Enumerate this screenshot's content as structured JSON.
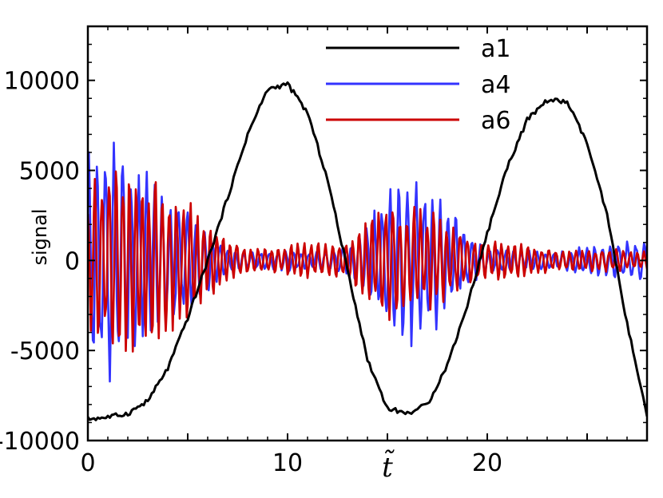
{
  "chart_data": {
    "type": "line",
    "title": "",
    "xlabel": "t̃",
    "ylabel": "signal",
    "xlim": [
      0,
      28
    ],
    "ylim": [
      -10000,
      13000
    ],
    "x_ticks": [
      0,
      10,
      20
    ],
    "x_tick_labels": [
      "0",
      "10",
      "20"
    ],
    "y_ticks": [
      -10000,
      -5000,
      0,
      5000,
      10000
    ],
    "y_tick_labels": [
      "-10000",
      "-5000",
      "0",
      "5000",
      "10000"
    ],
    "legend_position": "top-right",
    "grid": false,
    "series": [
      {
        "name": "a1",
        "color": "#000000",
        "points": [
          [
            0,
            -8800
          ],
          [
            1,
            -8700
          ],
          [
            2,
            -8500
          ],
          [
            3,
            -7800
          ],
          [
            4,
            -6000
          ],
          [
            5,
            -3200
          ],
          [
            6,
            0
          ],
          [
            7,
            3500
          ],
          [
            8,
            7000
          ],
          [
            9,
            9500
          ],
          [
            10,
            9800
          ],
          [
            11,
            8200
          ],
          [
            12,
            4500
          ],
          [
            13,
            -500
          ],
          [
            14,
            -5500
          ],
          [
            15,
            -8200
          ],
          [
            16,
            -8500
          ],
          [
            17,
            -8000
          ],
          [
            18,
            -5800
          ],
          [
            19,
            -2500
          ],
          [
            20,
            1500
          ],
          [
            21,
            5200
          ],
          [
            22,
            7800
          ],
          [
            23,
            8900
          ],
          [
            24,
            8800
          ],
          [
            25,
            6500
          ],
          [
            26,
            2500
          ],
          [
            27,
            -3500
          ],
          [
            28,
            -8700
          ]
        ]
      },
      {
        "name": "a4",
        "color": "#3333ff",
        "envelope": [
          [
            0,
            6500
          ],
          [
            1,
            7000
          ],
          [
            2,
            6000
          ],
          [
            3,
            5000
          ],
          [
            4,
            4000
          ],
          [
            5,
            3000
          ],
          [
            6,
            1800
          ],
          [
            7,
            700
          ],
          [
            8,
            500
          ],
          [
            9,
            500
          ],
          [
            10,
            600
          ],
          [
            11,
            500
          ],
          [
            12,
            600
          ],
          [
            13,
            800
          ],
          [
            14,
            2200
          ],
          [
            15,
            4000
          ],
          [
            16,
            5000
          ],
          [
            17,
            4500
          ],
          [
            18,
            3500
          ],
          [
            19,
            1500
          ],
          [
            20,
            700
          ],
          [
            21,
            600
          ],
          [
            22,
            600
          ],
          [
            23,
            500
          ],
          [
            24,
            600
          ],
          [
            25,
            900
          ],
          [
            26,
            1000
          ],
          [
            27,
            1100
          ],
          [
            28,
            1200
          ]
        ]
      },
      {
        "name": "a6",
        "color": "#cc0000",
        "envelope": [
          [
            0,
            4500
          ],
          [
            1,
            5000
          ],
          [
            2,
            5500
          ],
          [
            3,
            5000
          ],
          [
            4,
            4200
          ],
          [
            5,
            3500
          ],
          [
            6,
            2500
          ],
          [
            7,
            1200
          ],
          [
            8,
            800
          ],
          [
            9,
            700
          ],
          [
            10,
            900
          ],
          [
            11,
            1000
          ],
          [
            12,
            1000
          ],
          [
            13,
            1000
          ],
          [
            14,
            2500
          ],
          [
            15,
            3500
          ],
          [
            16,
            3500
          ],
          [
            17,
            3000
          ],
          [
            18,
            2500
          ],
          [
            19,
            1500
          ],
          [
            20,
            1000
          ],
          [
            21,
            1200
          ],
          [
            22,
            900
          ],
          [
            23,
            700
          ],
          [
            24,
            600
          ],
          [
            25,
            700
          ],
          [
            26,
            700
          ],
          [
            27,
            600
          ],
          [
            28,
            500
          ]
        ]
      }
    ]
  }
}
